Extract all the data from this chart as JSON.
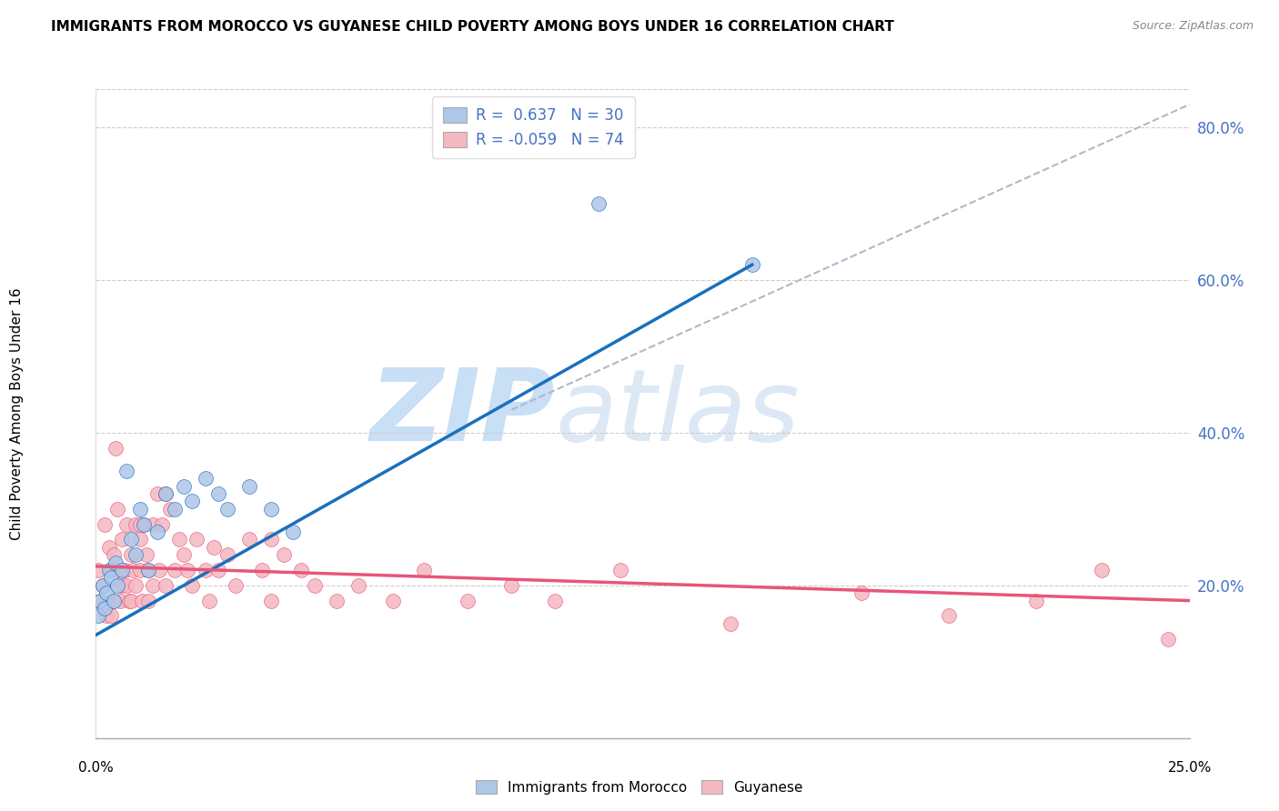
{
  "title": "IMMIGRANTS FROM MOROCCO VS GUYANESE CHILD POVERTY AMONG BOYS UNDER 16 CORRELATION CHART",
  "source": "Source: ZipAtlas.com",
  "ylabel": "Child Poverty Among Boys Under 16",
  "xlim": [
    0.0,
    25.0
  ],
  "ylim": [
    0.0,
    85.0
  ],
  "right_yticks": [
    20.0,
    40.0,
    60.0,
    80.0
  ],
  "legend_r1": "R =  0.637",
  "legend_n1": "N = 30",
  "legend_r2": "R = -0.059",
  "legend_n2": "N = 74",
  "color_blue": "#aec6e8",
  "color_pink": "#f4b8c1",
  "line_blue": "#1a6fbd",
  "line_pink": "#e8557a",
  "watermark_zip": "ZIP",
  "watermark_atlas": "atlas",
  "watermark_color": "#daeaf8",
  "blue_scatter_x": [
    0.05,
    0.1,
    0.15,
    0.2,
    0.25,
    0.3,
    0.35,
    0.4,
    0.45,
    0.5,
    0.6,
    0.7,
    0.8,
    0.9,
    1.0,
    1.1,
    1.2,
    1.4,
    1.6,
    1.8,
    2.0,
    2.2,
    2.5,
    2.8,
    3.0,
    3.5,
    4.0,
    4.5,
    11.5,
    15.0
  ],
  "blue_scatter_y": [
    16,
    18,
    20,
    17,
    19,
    22,
    21,
    18,
    23,
    20,
    22,
    35,
    26,
    24,
    30,
    28,
    22,
    27,
    32,
    30,
    33,
    31,
    34,
    32,
    30,
    33,
    30,
    27,
    70,
    62
  ],
  "pink_scatter_x": [
    0.05,
    0.1,
    0.15,
    0.2,
    0.25,
    0.3,
    0.35,
    0.35,
    0.4,
    0.4,
    0.45,
    0.5,
    0.5,
    0.55,
    0.6,
    0.6,
    0.65,
    0.7,
    0.7,
    0.75,
    0.8,
    0.8,
    0.85,
    0.9,
    0.9,
    1.0,
    1.0,
    1.05,
    1.1,
    1.15,
    1.2,
    1.2,
    1.3,
    1.3,
    1.4,
    1.45,
    1.5,
    1.6,
    1.7,
    1.8,
    1.9,
    2.0,
    2.1,
    2.2,
    2.3,
    2.5,
    2.6,
    2.8,
    3.0,
    3.2,
    3.5,
    3.8,
    4.0,
    4.3,
    4.7,
    5.0,
    5.5,
    6.0,
    6.8,
    7.5,
    8.5,
    9.5,
    10.5,
    12.0,
    14.5,
    17.5,
    19.5,
    21.5,
    23.0,
    24.5,
    4.0,
    2.7,
    1.6,
    1.0
  ],
  "pink_scatter_y": [
    22,
    18,
    20,
    28,
    16,
    25,
    22,
    16,
    24,
    18,
    38,
    30,
    22,
    18,
    26,
    20,
    22,
    28,
    20,
    18,
    24,
    18,
    22,
    28,
    20,
    26,
    22,
    18,
    28,
    24,
    22,
    18,
    28,
    20,
    32,
    22,
    28,
    32,
    30,
    22,
    26,
    24,
    22,
    20,
    26,
    22,
    18,
    22,
    24,
    20,
    26,
    22,
    18,
    24,
    22,
    20,
    18,
    20,
    18,
    22,
    18,
    20,
    18,
    22,
    15,
    19,
    16,
    18,
    22,
    13,
    26,
    25,
    20,
    28
  ],
  "blue_line_x0": 0.0,
  "blue_line_y0": 13.5,
  "blue_line_x1": 15.0,
  "blue_line_y1": 62.0,
  "pink_line_x0": 0.0,
  "pink_line_y0": 22.5,
  "pink_line_x1": 25.0,
  "pink_line_y1": 18.0,
  "diag_line_x0": 9.5,
  "diag_line_y0": 43.0,
  "diag_line_x1": 25.0,
  "diag_line_y1": 83.0,
  "grid_color": "#cccccc",
  "grid_yticks": [
    20,
    40,
    60,
    80
  ],
  "axis_label_color": "#4472c4",
  "xtick_labels": [
    "0.0%",
    "25.0%"
  ],
  "xtick_positions": [
    0.0,
    25.0
  ]
}
